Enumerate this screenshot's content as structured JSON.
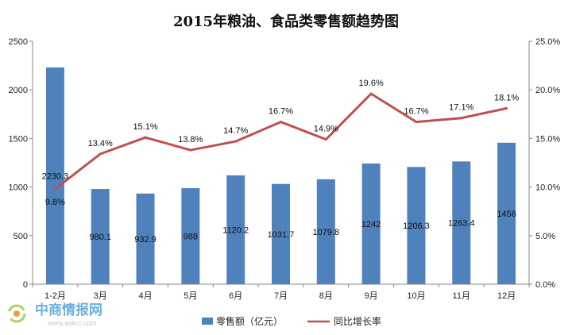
{
  "chart_data": {
    "type": "bar+line",
    "title": "2015年粮油、食品类零售额趋势图",
    "categories": [
      "1-2月",
      "3月",
      "4月",
      "5月",
      "6月",
      "7月",
      "8月",
      "9月",
      "10月",
      "11月",
      "12月"
    ],
    "series": [
      {
        "name": "零售额（亿元）",
        "type": "bar",
        "axis": "left",
        "color": "#4f81bd",
        "values": [
          2230.3,
          980.1,
          932.9,
          988,
          1120.2,
          1031.7,
          1079.8,
          1242,
          1206.3,
          1263.4,
          1456
        ],
        "labels": [
          "2230.3",
          "980.1",
          "932.9",
          "988",
          "1120.2",
          "1031.7",
          "1079.8",
          "1242",
          "1206.3",
          "1263.4",
          "1456"
        ]
      },
      {
        "name": "同比增长率",
        "type": "line",
        "axis": "right",
        "color": "#c0504d",
        "values": [
          9.8,
          13.4,
          15.1,
          13.8,
          14.7,
          16.7,
          14.9,
          19.6,
          16.7,
          17.1,
          18.1
        ],
        "labels": [
          "9.8%",
          "13.4%",
          "15.1%",
          "13.8%",
          "14.7%",
          "16.7%",
          "14.9%",
          "19.6%",
          "16.7%",
          "17.1%",
          "18.1%"
        ]
      }
    ],
    "y_left": {
      "min": 0,
      "max": 2500,
      "ticks": [
        "0",
        "500",
        "1000",
        "1500",
        "2000",
        "2500"
      ]
    },
    "y_right": {
      "min": 0,
      "max": 25,
      "ticks": [
        "0.0%",
        "5.0%",
        "10.0%",
        "15.0%",
        "20.0%",
        "25.0%"
      ]
    },
    "grid": false,
    "legend_position": "bottom"
  },
  "watermark": {
    "text": "中商情报网",
    "url": "www.askci.com"
  }
}
